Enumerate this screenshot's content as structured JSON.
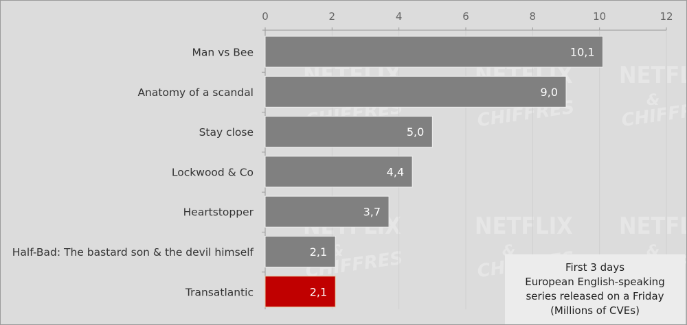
{
  "chart_data": {
    "type": "bar",
    "orientation": "horizontal",
    "categories": [
      "Man vs Bee",
      "Anatomy of a scandal",
      "Stay close",
      "Lockwood & Co",
      "Heartstopper",
      "Half-Bad: The bastard son & the devil himself",
      "Transatlantic"
    ],
    "values": [
      10.1,
      9.0,
      5.0,
      4.4,
      3.7,
      2.1,
      2.1
    ],
    "data_labels": [
      "10,1",
      "9,0",
      "5,0",
      "4,4",
      "3,7",
      "2,1",
      "2,1"
    ],
    "highlight_index": 6,
    "xlim": [
      0,
      12
    ],
    "xticks": [
      0,
      2,
      4,
      6,
      8,
      10,
      12
    ],
    "xtick_labels": [
      "0",
      "2",
      "4",
      "6",
      "8",
      "10",
      "12"
    ],
    "x_axis_position": "top",
    "grid": true,
    "colors": {
      "bar": "#808080",
      "highlight": "#c00000",
      "background": "#dcdcdc"
    },
    "annotation": [
      "First 3 days",
      "European English-speaking",
      "series released on a Friday",
      "(Millions of CVEs)"
    ],
    "annotation_placement": "bottom-right",
    "watermark": "NETFLIX & CHIFFRES"
  }
}
